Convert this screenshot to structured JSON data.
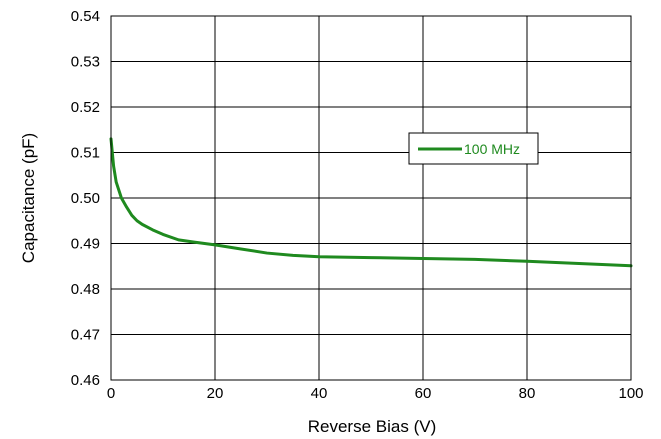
{
  "chart_data": {
    "type": "line",
    "title": "",
    "xlabel": "Reverse Bias (V)",
    "ylabel": "Capacitance (pF)",
    "xlim": [
      0,
      100
    ],
    "ylim": [
      0.46,
      0.54
    ],
    "x_ticks": [
      "0",
      "20",
      "40",
      "60",
      "80",
      "100"
    ],
    "y_ticks": [
      "0.46",
      "0.47",
      "0.48",
      "0.49",
      "0.50",
      "0.51",
      "0.52",
      "0.53",
      "0.54"
    ],
    "grid": true,
    "legend_position": "right",
    "series": [
      {
        "name": "100 MHz",
        "color": "#1f8a1f",
        "x": [
          0,
          0.5,
          1,
          2,
          3,
          4,
          5,
          6,
          8,
          10,
          13,
          16,
          20,
          25,
          30,
          35,
          40,
          50,
          60,
          70,
          80,
          90,
          100
        ],
        "y": [
          0.513,
          0.507,
          0.5035,
          0.5,
          0.498,
          0.4962,
          0.495,
          0.4942,
          0.493,
          0.492,
          0.4908,
          0.4903,
          0.4897,
          0.4888,
          0.4879,
          0.4874,
          0.4871,
          0.4869,
          0.4867,
          0.4865,
          0.4861,
          0.4856,
          0.4851
        ]
      }
    ]
  }
}
